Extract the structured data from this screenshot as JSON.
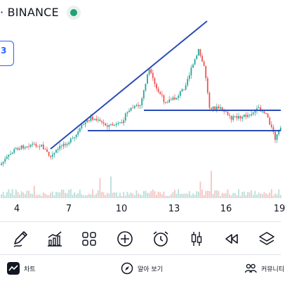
{
  "header": {
    "exchange_label": "· BINANCE",
    "status": "connected"
  },
  "badge": {
    "text": "3"
  },
  "x_axis": {
    "ticks": [
      "4",
      "7",
      "10",
      "13",
      "16",
      "19"
    ]
  },
  "toolbar": {
    "items": [
      {
        "name": "draw",
        "icon": "pencil-icon"
      },
      {
        "name": "indicators",
        "icon": "indicators-icon"
      },
      {
        "name": "layouts",
        "icon": "grid-icon"
      },
      {
        "name": "add",
        "icon": "plus-circle-icon"
      },
      {
        "name": "alert",
        "icon": "alarm-clock-icon"
      },
      {
        "name": "chart-type",
        "icon": "candles-icon"
      },
      {
        "name": "replay",
        "icon": "rewind-icon"
      },
      {
        "name": "object-tree",
        "icon": "layers-icon"
      }
    ]
  },
  "bottom_nav": {
    "items": [
      {
        "label": "차트",
        "icon": "chart-icon"
      },
      {
        "label": "알아 보기",
        "icon": "compass-icon"
      },
      {
        "label": "커뮤니티",
        "icon": "community-icon"
      }
    ]
  },
  "colors": {
    "up": "#26a69a",
    "down": "#ef5350",
    "trendline": "#2a4bb8",
    "accent": "#2962ff"
  }
}
